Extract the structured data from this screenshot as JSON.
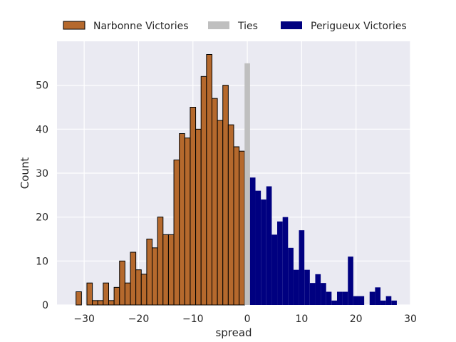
{
  "chart_data": {
    "type": "bar",
    "title": "",
    "xlabel": "spread",
    "ylabel": "Count",
    "xlim": [
      -35,
      30
    ],
    "ylim": [
      0,
      60
    ],
    "xticks": [
      -30,
      -20,
      -10,
      0,
      10,
      20,
      30
    ],
    "yticks": [
      0,
      10,
      20,
      30,
      40,
      50
    ],
    "grid": true,
    "legend_position": "top",
    "colors": {
      "background": "#eaeaf2",
      "grid": "#ffffff",
      "narbonne": "#b5692d",
      "ties": "#bfbfbf",
      "perigueux": "#000080",
      "bar_edge": "#000000"
    },
    "series": [
      {
        "name": "Narbonne Victories",
        "x": [
          -31,
          -29,
          -28,
          -27,
          -26,
          -25,
          -24,
          -23,
          -22,
          -21,
          -20,
          -19,
          -18,
          -17,
          -16,
          -15,
          -14,
          -13,
          -12,
          -11,
          -10,
          -9,
          -8,
          -7,
          -6,
          -5,
          -4,
          -3,
          -2,
          -1
        ],
        "values": [
          3,
          5,
          1,
          1,
          5,
          1,
          4,
          10,
          5,
          12,
          8,
          7,
          15,
          13,
          20,
          16,
          16,
          33,
          39,
          38,
          45,
          40,
          52,
          57,
          47,
          42,
          50,
          41,
          36,
          35
        ]
      },
      {
        "name": "Ties",
        "x": [
          0
        ],
        "values": [
          55
        ]
      },
      {
        "name": "Perigueux Victories",
        "x": [
          1,
          2,
          3,
          4,
          5,
          6,
          7,
          8,
          9,
          10,
          11,
          12,
          13,
          14,
          15,
          16,
          17,
          18,
          19,
          20,
          21,
          23,
          24,
          25,
          26,
          27
        ],
        "values": [
          29,
          26,
          24,
          27,
          16,
          19,
          20,
          13,
          8,
          17,
          8,
          5,
          7,
          5,
          3,
          1,
          3,
          3,
          11,
          2,
          2,
          3,
          4,
          1,
          2,
          1
        ]
      }
    ]
  }
}
